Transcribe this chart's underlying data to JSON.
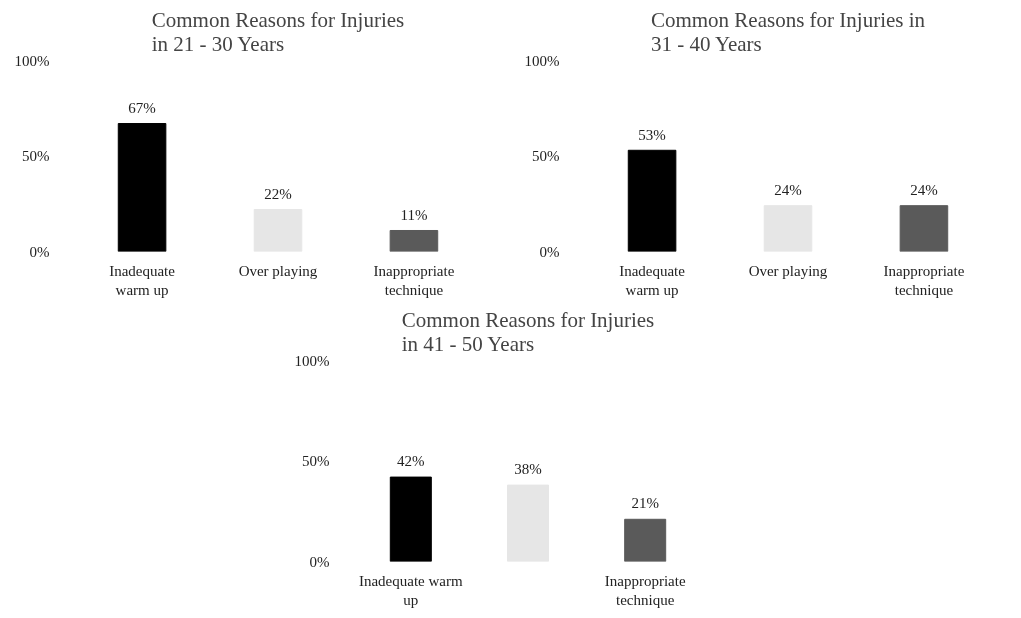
{
  "chart_data": [
    {
      "type": "bar",
      "title": "Common Reasons for Injuries\nin 21 - 30 Years",
      "categories": [
        "Inadequate warm up",
        "Over playing",
        "Inappropriate technique"
      ],
      "values": [
        67,
        22,
        11
      ],
      "colors": [
        "#000000",
        "#e6e6e6",
        "#5a5a5a"
      ],
      "value_labels": [
        "67%",
        "22%",
        "11%"
      ],
      "ylim": [
        0,
        100
      ],
      "yticks": [
        {
          "value": 0,
          "label": "0%"
        },
        {
          "value": 50,
          "label": "50%"
        },
        {
          "value": 100,
          "label": "100%"
        }
      ],
      "grid": false
    },
    {
      "type": "bar",
      "title": "Common Reasons for Injuries in\n31 - 40 Years",
      "categories": [
        "Inadequate warm up",
        "Over playing",
        "Inappropriate technique"
      ],
      "values": [
        53,
        24,
        24
      ],
      "colors": [
        "#000000",
        "#e6e6e6",
        "#5a5a5a"
      ],
      "value_labels": [
        "53%",
        "24%",
        "24%"
      ],
      "ylim": [
        0,
        100
      ],
      "yticks": [
        {
          "value": 0,
          "label": "0%"
        },
        {
          "value": 50,
          "label": "50%"
        },
        {
          "value": 100,
          "label": "100%"
        }
      ],
      "grid": false
    },
    {
      "type": "bar",
      "title": "Common Reasons for Injuries\nin 41 - 50 Years",
      "categories": [
        "Inadequate warm up",
        null,
        "Inappropriate technique"
      ],
      "values": [
        42,
        38,
        21
      ],
      "colors": [
        "#000000",
        "#e6e6e6",
        "#5a5a5a"
      ],
      "value_labels": [
        "42%",
        "38%",
        "21%"
      ],
      "ylim": [
        0,
        100
      ],
      "yticks": [
        {
          "value": 0,
          "label": "0%"
        },
        {
          "value": 50,
          "label": "50%"
        },
        {
          "value": 100,
          "label": "100%"
        }
      ],
      "grid": false
    }
  ]
}
